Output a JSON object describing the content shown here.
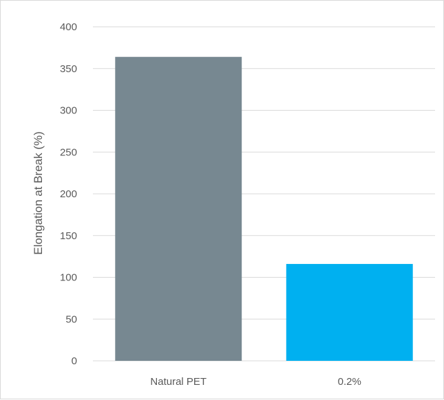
{
  "chart_data": {
    "type": "bar",
    "title": "",
    "xlabel": "",
    "ylabel": "Elongation at Break (%)",
    "categories": [
      "Natural PET",
      "0.2%"
    ],
    "values": [
      364,
      116
    ],
    "bar_colors": [
      "#778891",
      "#00b0f0"
    ],
    "ylim": [
      0,
      400
    ],
    "yticks": [
      0,
      50,
      100,
      150,
      200,
      250,
      300,
      350,
      400
    ],
    "grid": true,
    "legend": "none",
    "gridline_color": "#d9d9d9",
    "text_color": "#595959"
  }
}
